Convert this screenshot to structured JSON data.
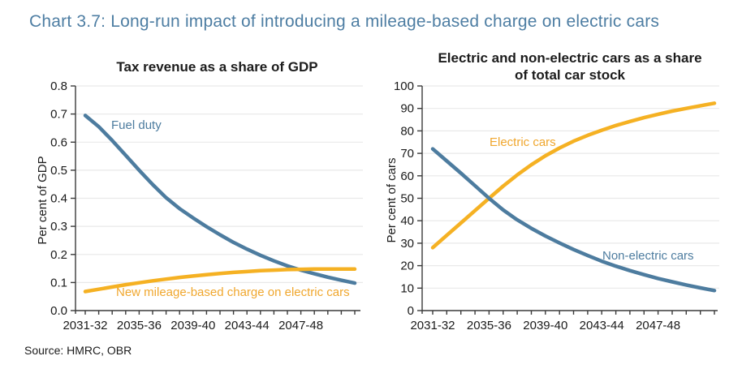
{
  "page": {
    "title": "Chart 3.7: Long-run impact of introducing a mileage-based charge on electric cars",
    "source": "Source: HMRC, OBR",
    "colors": {
      "title_blue": "#4e7ea3",
      "line_blue": "#4d7c9f",
      "line_yellow": "#f5b123",
      "label_yellow": "#f0a72e",
      "grid": "#e9e9e9",
      "axis": "#3a3a3a",
      "text": "#1a1a1a"
    }
  },
  "chart_data": [
    {
      "type": "line",
      "title": "Tax revenue as a share of GDP",
      "xlabel": "",
      "ylabel": "Per cent of GDP",
      "ylim": [
        0.0,
        0.8
      ],
      "yticks": [
        0.0,
        0.1,
        0.2,
        0.3,
        0.4,
        0.5,
        0.6,
        0.7,
        0.8
      ],
      "ytick_labels": [
        "0.0",
        "0.1",
        "0.2",
        "0.3",
        "0.4",
        "0.5",
        "0.6",
        "0.7",
        "0.8"
      ],
      "grid": true,
      "legend_position": "inline-labels",
      "categories": [
        "2031-32",
        "2032-33",
        "2033-34",
        "2034-35",
        "2035-36",
        "2036-37",
        "2037-38",
        "2038-39",
        "2039-40",
        "2040-41",
        "2041-42",
        "2042-43",
        "2043-44",
        "2044-45",
        "2045-46",
        "2046-47",
        "2047-48",
        "2048-49",
        "2049-50",
        "2050-51",
        "2051-52"
      ],
      "xtick_label_indices": [
        0,
        4,
        8,
        12,
        16
      ],
      "series": [
        {
          "name": "Fuel duty",
          "color_key": "line_blue",
          "values": [
            0.695,
            0.655,
            0.606,
            0.553,
            0.5,
            0.449,
            0.402,
            0.363,
            0.33,
            0.299,
            0.27,
            0.243,
            0.219,
            0.197,
            0.177,
            0.159,
            0.144,
            0.131,
            0.119,
            0.108,
            0.098
          ]
        },
        {
          "name": "New mileage-based charge on electric cars",
          "color_key": "line_yellow",
          "values": [
            0.068,
            0.076,
            0.084,
            0.092,
            0.099,
            0.106,
            0.112,
            0.118,
            0.123,
            0.128,
            0.132,
            0.136,
            0.139,
            0.142,
            0.144,
            0.146,
            0.147,
            0.148,
            0.148,
            0.148,
            0.148
          ]
        }
      ]
    },
    {
      "type": "line",
      "title": "Electric and non-electric cars as a share of total car stock",
      "xlabel": "",
      "ylabel": "Per cent of cars",
      "ylim": [
        0,
        100
      ],
      "yticks": [
        0,
        10,
        20,
        30,
        40,
        50,
        60,
        70,
        80,
        90,
        100
      ],
      "ytick_labels": [
        "0",
        "10",
        "20",
        "30",
        "40",
        "50",
        "60",
        "70",
        "80",
        "90",
        "100"
      ],
      "grid": true,
      "legend_position": "inline-labels",
      "categories": [
        "2031-32",
        "2032-33",
        "2033-34",
        "2034-35",
        "2035-36",
        "2036-37",
        "2037-38",
        "2038-39",
        "2039-40",
        "2040-41",
        "2041-42",
        "2042-43",
        "2043-44",
        "2044-45",
        "2045-46",
        "2046-47",
        "2047-48",
        "2048-49",
        "2049-50",
        "2050-51",
        "2051-52"
      ],
      "xtick_label_indices": [
        0,
        4,
        8,
        12,
        16
      ],
      "series": [
        {
          "name": "Electric cars",
          "color_key": "line_yellow",
          "values": [
            28,
            33.5,
            39,
            44.5,
            50,
            55.4,
            60.4,
            64.9,
            68.9,
            72.4,
            75.4,
            78,
            80.3,
            82.4,
            84.2,
            85.9,
            87.4,
            88.8,
            90,
            91.2,
            92.3
          ]
        },
        {
          "name": "Non-electric cars",
          "color_key": "line_blue",
          "values": [
            72,
            66.6,
            61.2,
            55.6,
            50,
            44.8,
            40.4,
            36.6,
            33.2,
            30.1,
            27.2,
            24.5,
            22,
            19.8,
            17.8,
            16,
            14.3,
            12.8,
            11.4,
            10.1,
            8.9
          ]
        }
      ]
    }
  ]
}
